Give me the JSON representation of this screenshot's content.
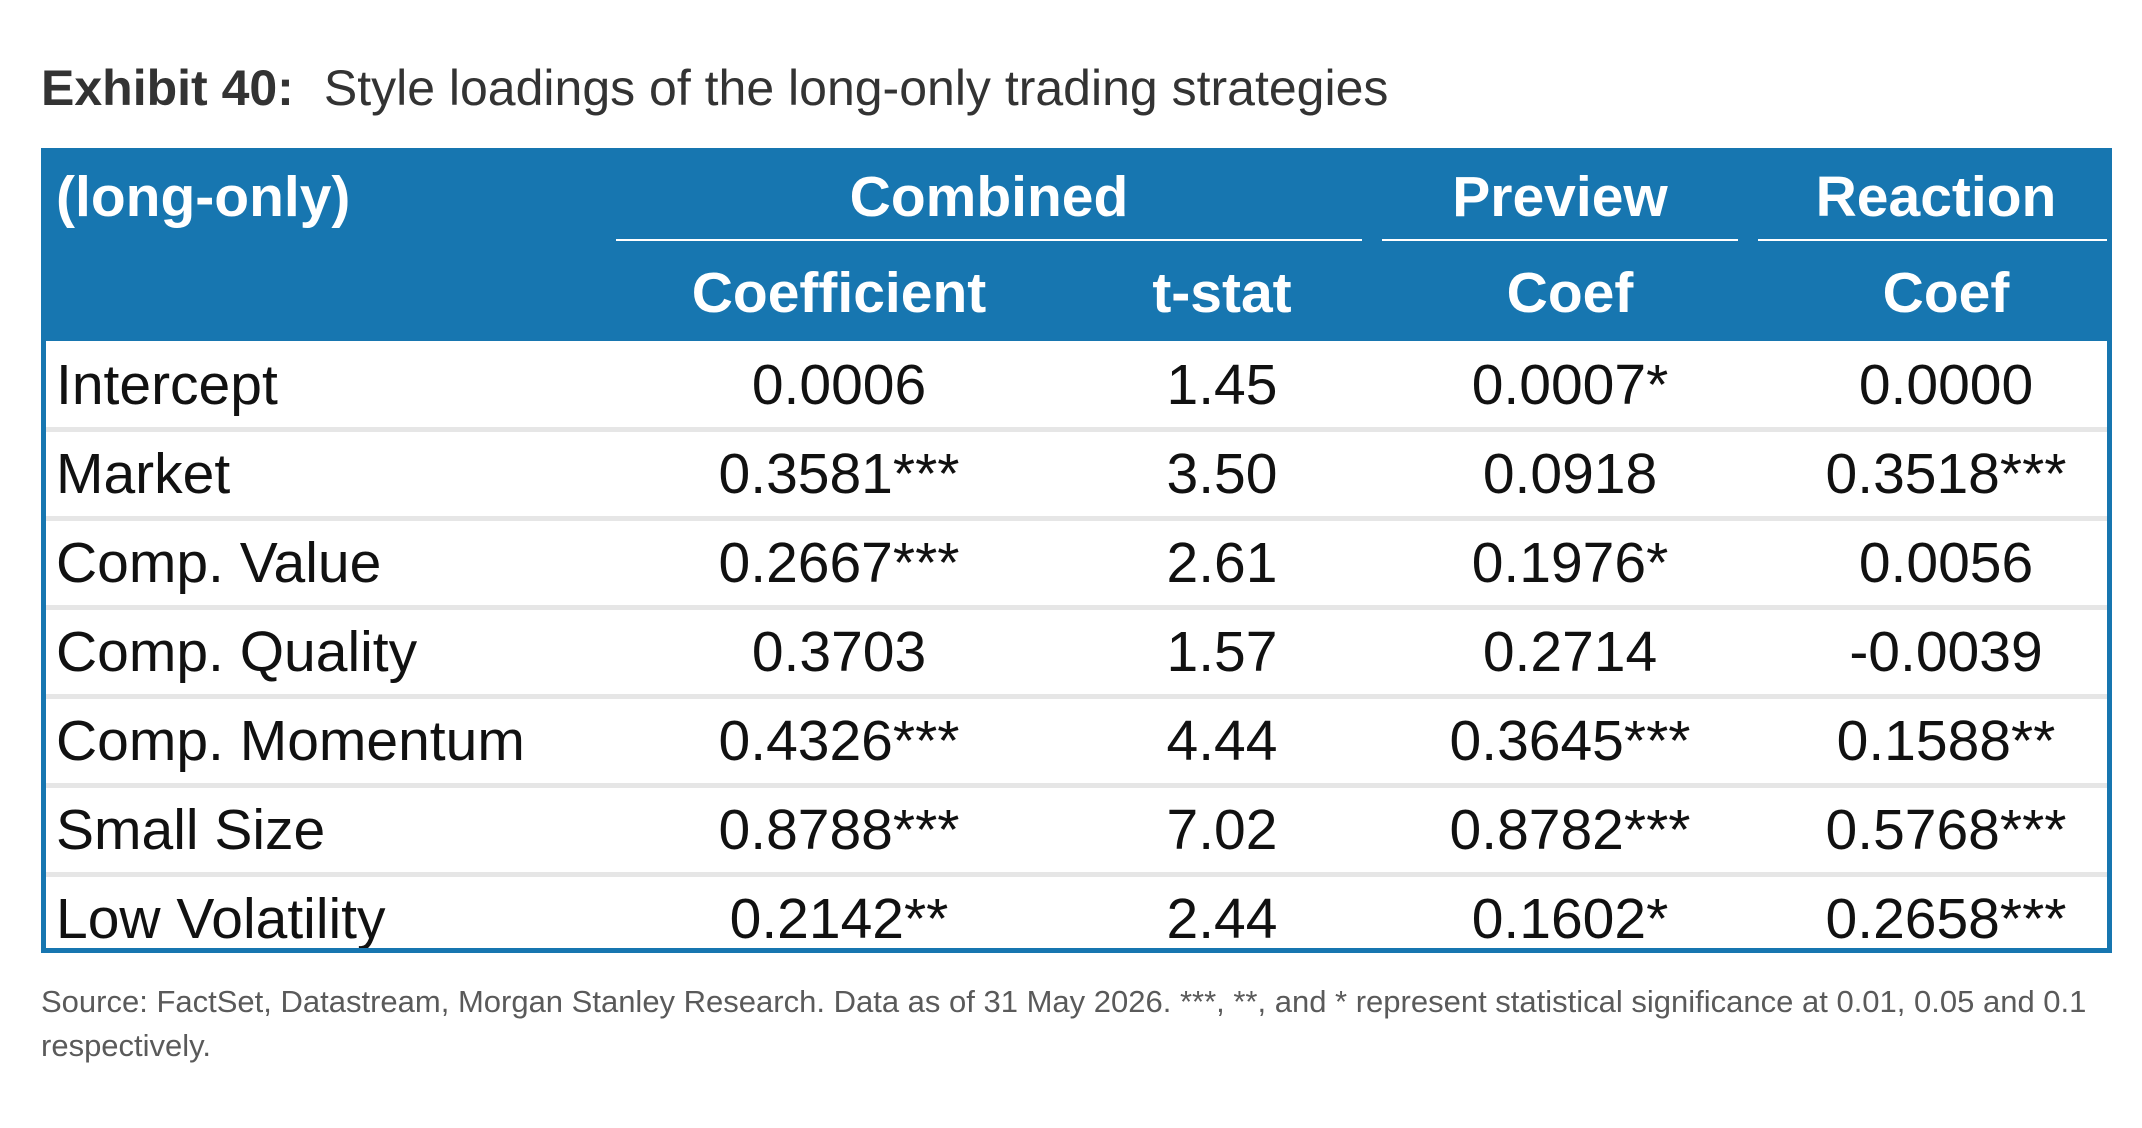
{
  "exhibit": {
    "label": "Exhibit 40:",
    "caption": "Style loadings of the long-only trading strategies"
  },
  "table": {
    "corner_label": "(long-only)",
    "groups": [
      "Combined",
      "Preview",
      "Reaction"
    ],
    "columns": [
      "Coefficient",
      "t-stat",
      "Coef",
      "Coef"
    ],
    "rows": [
      {
        "label": "Intercept",
        "values": [
          "0.0006",
          "1.45",
          "0.0007*",
          "0.0000"
        ]
      },
      {
        "label": "Market",
        "values": [
          "0.3581***",
          "3.50",
          "0.0918",
          "0.3518***"
        ]
      },
      {
        "label": "Comp. Value",
        "values": [
          "0.2667***",
          "2.61",
          "0.1976*",
          "0.0056"
        ]
      },
      {
        "label": "Comp. Quality",
        "values": [
          "0.3703",
          "1.57",
          "0.2714",
          "-0.0039"
        ]
      },
      {
        "label": "Comp. Momentum",
        "values": [
          "0.4326***",
          "4.44",
          "0.3645***",
          "0.1588**"
        ]
      },
      {
        "label": "Small Size",
        "values": [
          "0.8788***",
          "7.02",
          "0.8782***",
          "0.5768***"
        ]
      },
      {
        "label": "Low Volatility",
        "values": [
          "0.2142**",
          "2.44",
          "0.1602*",
          "0.2658***"
        ]
      }
    ]
  },
  "source": "Source: FactSet, Datastream, Morgan Stanley Research. Data as of 31 May 2026. ***, **, and * represent statistical significance at 0.01, 0.05 and 0.1 respectively.",
  "colors": {
    "header_background": "#1776b0",
    "header_text": "#ffffff",
    "row_separator": "#e6e6e6"
  }
}
